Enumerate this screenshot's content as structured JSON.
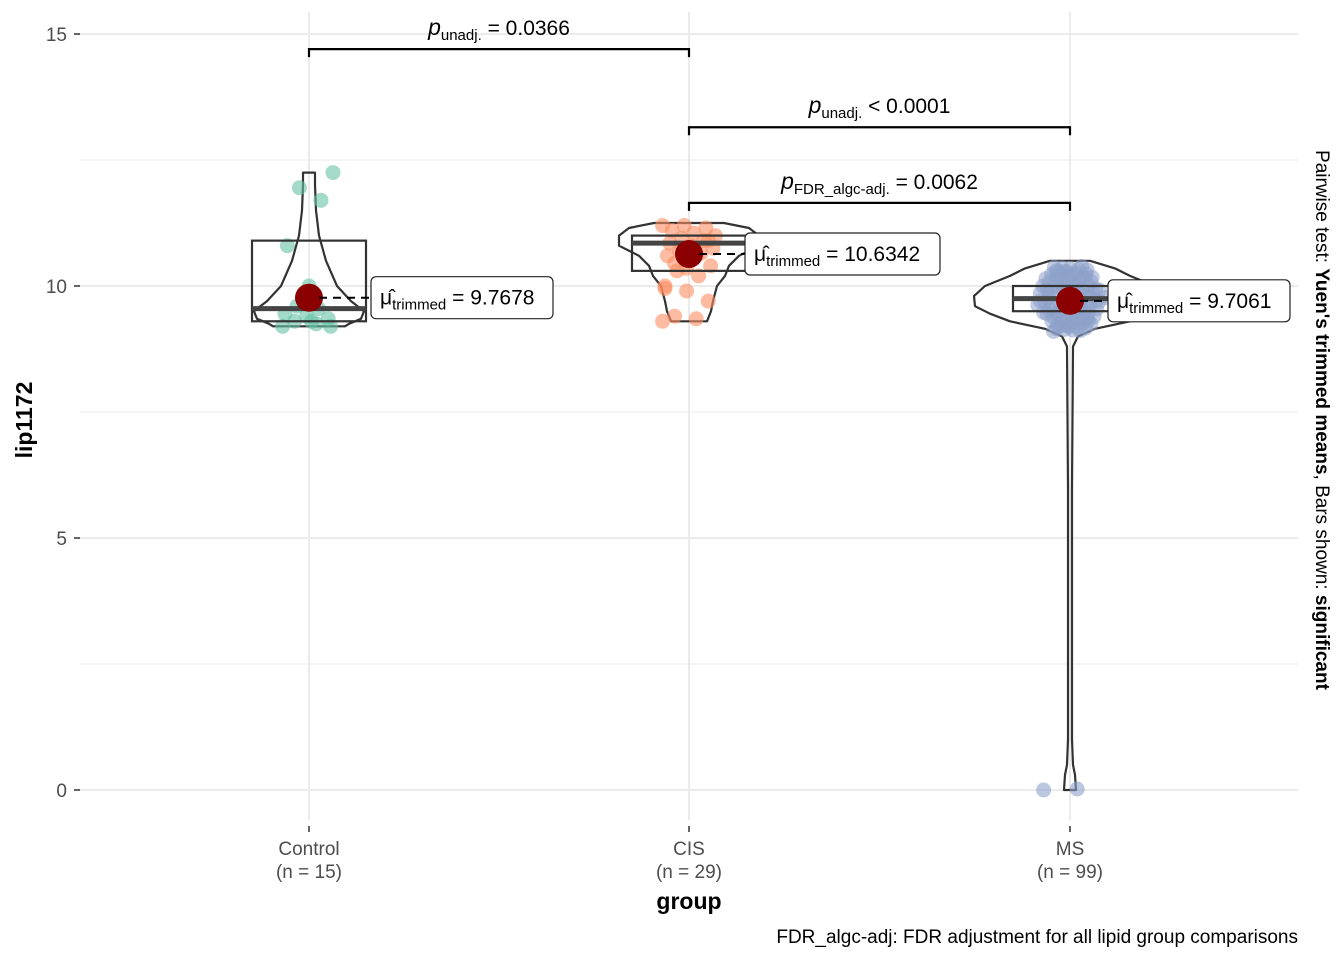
{
  "chart_data": {
    "type": "violin",
    "xlabel": "group",
    "ylabel": "lip1172",
    "ylim": [
      -1.0,
      15.3
    ],
    "yticks": [
      0,
      5,
      10,
      15
    ],
    "grid": true,
    "caption": "FDR_algc-adj: FDR adjustment for all lipid group comparisons",
    "subtitle_right": {
      "prefix": "Pairwise test: ",
      "test_name": "Yuen's trimmed means",
      "middle": ", Bars shown: ",
      "bars": "significant"
    },
    "groups": [
      {
        "name": "Control",
        "n_label": "(n = 15)",
        "color": "#66c2a5",
        "trimmed_mean": 9.7678,
        "trimmed_label": "9.7678",
        "box": {
          "q1": 9.3,
          "median": 9.55,
          "q3": 10.9
        },
        "points": [
          9.2,
          9.25,
          9.3,
          9.35,
          9.4,
          9.45,
          9.55,
          9.6,
          9.2,
          10.0,
          10.8,
          11.7,
          11.95,
          12.25,
          9.3
        ]
      },
      {
        "name": "CIS",
        "n_label": "(n = 29)",
        "color": "#fc8d62",
        "trimmed_mean": 10.6342,
        "trimmed_label": "10.6342",
        "box": {
          "q1": 10.3,
          "median": 10.85,
          "q3": 11.0
        },
        "points": [
          9.3,
          9.35,
          9.4,
          9.7,
          9.9,
          10.0,
          10.2,
          10.3,
          10.4,
          10.5,
          10.6,
          10.65,
          10.7,
          10.75,
          10.8,
          10.85,
          10.9,
          10.95,
          11.0,
          11.05,
          11.1,
          11.15,
          11.2,
          11.2,
          10.6,
          10.45,
          10.9,
          10.35,
          9.95
        ]
      },
      {
        "name": "MS",
        "n_label": "(n = 99)",
        "color": "#8da0cb",
        "trimmed_mean": 9.7061,
        "trimmed_label": "9.7061",
        "box": {
          "q1": 9.5,
          "median": 9.75,
          "q3": 10.0
        },
        "points": [
          0.0,
          0.02
        ]
      }
    ],
    "comparisons": [
      {
        "from": "Control",
        "to": "CIS",
        "y": 14.7,
        "label_type": "unadj.",
        "relation": "=",
        "value": "0.0366"
      },
      {
        "from": "CIS",
        "to": "MS",
        "y": 13.15,
        "label_type": "unadj.",
        "relation": "<",
        "value": "0.0001"
      },
      {
        "from": "CIS",
        "to": "MS",
        "y": 11.65,
        "label_type": "FDR_algc-adj.",
        "relation": "=",
        "value": "0.0062"
      }
    ],
    "mean_label_prefix": "trimmed",
    "mean_color": "#8b0000"
  }
}
